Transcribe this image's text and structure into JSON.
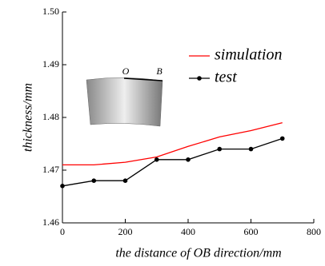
{
  "chart_data": {
    "type": "line",
    "x_label": "the distance of OB direction/mm",
    "y_label": "thickness/mm",
    "x": [
      0,
      100,
      200,
      300,
      400,
      500,
      600,
      700
    ],
    "series": [
      {
        "name": "simulation",
        "color": "#ff0000",
        "values": [
          1.471,
          1.471,
          1.4715,
          1.4725,
          1.4745,
          1.4763,
          1.4775,
          1.479
        ],
        "markers": false
      },
      {
        "name": "test",
        "color": "#000000",
        "values": [
          1.467,
          1.468,
          1.468,
          1.472,
          1.472,
          1.474,
          1.474,
          1.476
        ],
        "markers": true
      }
    ],
    "annotations": [
      "O",
      "B"
    ],
    "xlim": [
      0,
      800
    ],
    "xticks": [
      0,
      200,
      400,
      600,
      800
    ],
    "ylim": [
      1.46,
      1.5
    ],
    "yticks": [
      1.46,
      1.47,
      1.48,
      1.49,
      {
        "value": 1.5,
        "label": "1.50"
      }
    ],
    "legend": "upper-right"
  }
}
